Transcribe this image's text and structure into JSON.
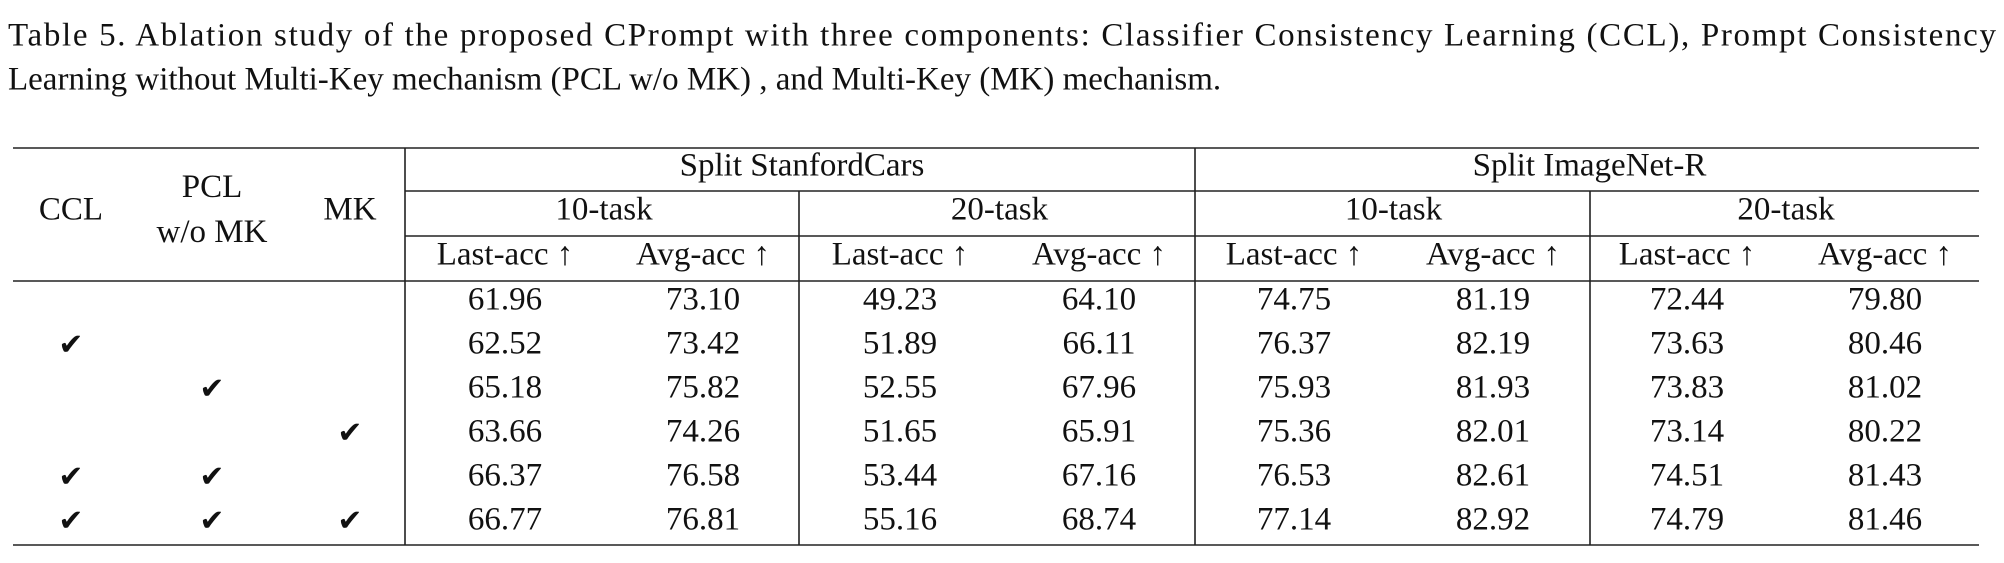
{
  "caption": {
    "lines": [
      "Table 5.  Ablation study of the proposed CPrompt with three components: Classifier Consistency Learning (CCL), Prompt Consistency",
      "Learning without Multi-Key mechanism (PCL w/o MK) , and Multi-Key (MK) mechanism."
    ]
  },
  "table": {
    "check_mark": "✔",
    "row_headers": {
      "ccl": [
        "CCL"
      ],
      "pcl": [
        "PCL",
        "w/o MK"
      ],
      "mk": [
        "MK"
      ]
    },
    "groups": [
      {
        "name": "Split StanfordCars",
        "subgroups": [
          {
            "name": "10-task",
            "metrics": [
              "Last-acc ↑",
              "Avg-acc ↑"
            ]
          },
          {
            "name": "20-task",
            "metrics": [
              "Last-acc ↑",
              "Avg-acc ↑"
            ]
          }
        ]
      },
      {
        "name": "Split ImageNet-R",
        "subgroups": [
          {
            "name": "10-task",
            "metrics": [
              "Last-acc ↑",
              "Avg-acc ↑"
            ]
          },
          {
            "name": "20-task",
            "metrics": [
              "Last-acc ↑",
              "Avg-acc ↑"
            ]
          }
        ]
      }
    ],
    "rows": [
      {
        "ccl": false,
        "pcl": false,
        "mk": false,
        "values": [
          "61.96",
          "73.10",
          "49.23",
          "64.10",
          "74.75",
          "81.19",
          "72.44",
          "79.80"
        ]
      },
      {
        "ccl": true,
        "pcl": false,
        "mk": false,
        "values": [
          "62.52",
          "73.42",
          "51.89",
          "66.11",
          "76.37",
          "82.19",
          "73.63",
          "80.46"
        ]
      },
      {
        "ccl": false,
        "pcl": true,
        "mk": false,
        "values": [
          "65.18",
          "75.82",
          "52.55",
          "67.96",
          "75.93",
          "81.93",
          "73.83",
          "81.02"
        ]
      },
      {
        "ccl": false,
        "pcl": false,
        "mk": true,
        "values": [
          "63.66",
          "74.26",
          "51.65",
          "65.91",
          "75.36",
          "82.01",
          "73.14",
          "80.22"
        ]
      },
      {
        "ccl": true,
        "pcl": true,
        "mk": false,
        "values": [
          "66.37",
          "76.58",
          "53.44",
          "67.16",
          "76.53",
          "82.61",
          "74.51",
          "81.43"
        ]
      },
      {
        "ccl": true,
        "pcl": true,
        "mk": true,
        "values": [
          "66.77",
          "76.81",
          "55.16",
          "68.74",
          "77.14",
          "82.92",
          "74.79",
          "81.46"
        ]
      }
    ]
  }
}
